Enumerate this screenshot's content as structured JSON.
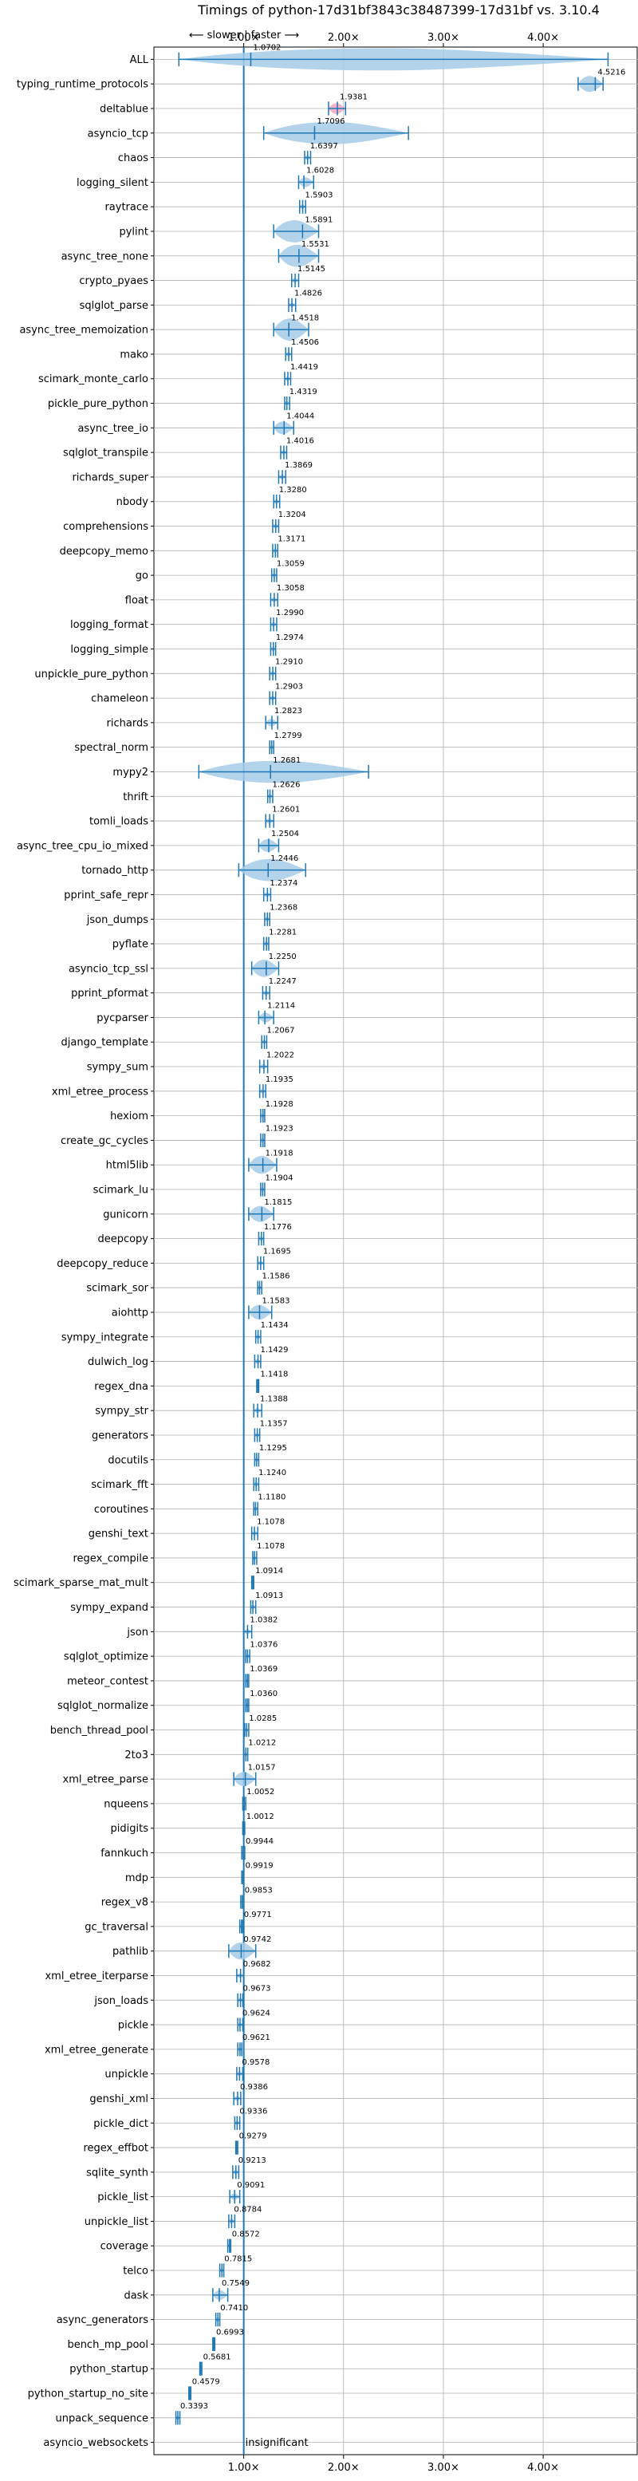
{
  "chart_data": {
    "type": "violin",
    "title": "Timings of python-17d31bf3843c38487399-17d31bf vs. 3.10.4",
    "direction_label": "⟵ slower | faster ⟶",
    "xlim": [
      0.1,
      4.95
    ],
    "xticks": [
      1,
      2,
      3,
      4
    ],
    "xtick_labels": [
      "1.00×",
      "2.00×",
      "3.00×",
      "4.00×"
    ],
    "reference_line": 1.0,
    "grid": true,
    "insignificant_label": "insignificant",
    "benchmarks": [
      {
        "name": "ALL",
        "value": 1.0702,
        "label": "1.0702",
        "min": 0.35,
        "max": 4.65
      },
      {
        "name": "typing_runtime_protocols",
        "value": 4.5216,
        "label": "4.5216",
        "min": 4.35,
        "max": 4.6
      },
      {
        "name": "deltablue",
        "value": 1.9381,
        "label": "1.9381",
        "min": 1.85,
        "max": 2.02
      },
      {
        "name": "asyncio_tcp",
        "value": 1.7096,
        "label": "1.7096",
        "min": 1.2,
        "max": 2.65
      },
      {
        "name": "chaos",
        "value": 1.6397,
        "label": "1.6397",
        "min": 1.61,
        "max": 1.67
      },
      {
        "name": "logging_silent",
        "value": 1.6028,
        "label": "1.6028",
        "min": 1.55,
        "max": 1.7
      },
      {
        "name": "raytrace",
        "value": 1.5903,
        "label": "1.5903",
        "min": 1.56,
        "max": 1.62
      },
      {
        "name": "pylint",
        "value": 1.5891,
        "label": "1.5891",
        "min": 1.3,
        "max": 1.75
      },
      {
        "name": "async_tree_none",
        "value": 1.5531,
        "label": "1.5531",
        "min": 1.35,
        "max": 1.75
      },
      {
        "name": "crypto_pyaes",
        "value": 1.5145,
        "label": "1.5145",
        "min": 1.48,
        "max": 1.55
      },
      {
        "name": "sqlglot_parse",
        "value": 1.4826,
        "label": "1.4826",
        "min": 1.45,
        "max": 1.52
      },
      {
        "name": "async_tree_memoization",
        "value": 1.4518,
        "label": "1.4518",
        "min": 1.3,
        "max": 1.65
      },
      {
        "name": "mako",
        "value": 1.4506,
        "label": "1.4506",
        "min": 1.42,
        "max": 1.48
      },
      {
        "name": "scimark_monte_carlo",
        "value": 1.4419,
        "label": "1.4419",
        "min": 1.41,
        "max": 1.47
      },
      {
        "name": "pickle_pure_python",
        "value": 1.4319,
        "label": "1.4319",
        "min": 1.41,
        "max": 1.46
      },
      {
        "name": "async_tree_io",
        "value": 1.4044,
        "label": "1.4044",
        "min": 1.3,
        "max": 1.5
      },
      {
        "name": "sqlglot_transpile",
        "value": 1.4016,
        "label": "1.4016",
        "min": 1.37,
        "max": 1.43
      },
      {
        "name": "richards_super",
        "value": 1.3869,
        "label": "1.3869",
        "min": 1.35,
        "max": 1.42
      },
      {
        "name": "nbody",
        "value": 1.328,
        "label": "1.3280",
        "min": 1.3,
        "max": 1.36
      },
      {
        "name": "comprehensions",
        "value": 1.3204,
        "label": "1.3204",
        "min": 1.29,
        "max": 1.35
      },
      {
        "name": "deepcopy_memo",
        "value": 1.3171,
        "label": "1.3171",
        "min": 1.29,
        "max": 1.34
      },
      {
        "name": "go",
        "value": 1.3059,
        "label": "1.3059",
        "min": 1.28,
        "max": 1.33
      },
      {
        "name": "float",
        "value": 1.3058,
        "label": "1.3058",
        "min": 1.27,
        "max": 1.34
      },
      {
        "name": "logging_format",
        "value": 1.299,
        "label": "1.2990",
        "min": 1.27,
        "max": 1.33
      },
      {
        "name": "logging_simple",
        "value": 1.2974,
        "label": "1.2974",
        "min": 1.27,
        "max": 1.32
      },
      {
        "name": "unpickle_pure_python",
        "value": 1.291,
        "label": "1.2910",
        "min": 1.26,
        "max": 1.32
      },
      {
        "name": "chameleon",
        "value": 1.2903,
        "label": "1.2903",
        "min": 1.26,
        "max": 1.32
      },
      {
        "name": "richards",
        "value": 1.2823,
        "label": "1.2823",
        "min": 1.22,
        "max": 1.34
      },
      {
        "name": "spectral_norm",
        "value": 1.2799,
        "label": "1.2799",
        "min": 1.26,
        "max": 1.3
      },
      {
        "name": "mypy2",
        "value": 1.2681,
        "label": "1.2681",
        "min": 0.55,
        "max": 2.25
      },
      {
        "name": "thrift",
        "value": 1.2626,
        "label": "1.2626",
        "min": 1.24,
        "max": 1.29
      },
      {
        "name": "tomli_loads",
        "value": 1.2601,
        "label": "1.2601",
        "min": 1.22,
        "max": 1.3
      },
      {
        "name": "async_tree_cpu_io_mixed",
        "value": 1.2504,
        "label": "1.2504",
        "min": 1.15,
        "max": 1.35
      },
      {
        "name": "tornado_http",
        "value": 1.2446,
        "label": "1.2446",
        "min": 0.95,
        "max": 1.62
      },
      {
        "name": "pprint_safe_repr",
        "value": 1.2374,
        "label": "1.2374",
        "min": 1.2,
        "max": 1.27
      },
      {
        "name": "json_dumps",
        "value": 1.2368,
        "label": "1.2368",
        "min": 1.21,
        "max": 1.26
      },
      {
        "name": "pyflate",
        "value": 1.2281,
        "label": "1.2281",
        "min": 1.2,
        "max": 1.25
      },
      {
        "name": "asyncio_tcp_ssl",
        "value": 1.225,
        "label": "1.2250",
        "min": 1.08,
        "max": 1.35
      },
      {
        "name": "pprint_pformat",
        "value": 1.2247,
        "label": "1.2247",
        "min": 1.19,
        "max": 1.26
      },
      {
        "name": "pycparser",
        "value": 1.2114,
        "label": "1.2114",
        "min": 1.15,
        "max": 1.3
      },
      {
        "name": "django_template",
        "value": 1.2067,
        "label": "1.2067",
        "min": 1.18,
        "max": 1.23
      },
      {
        "name": "sympy_sum",
        "value": 1.2022,
        "label": "1.2022",
        "min": 1.16,
        "max": 1.24
      },
      {
        "name": "xml_etree_process",
        "value": 1.1935,
        "label": "1.1935",
        "min": 1.16,
        "max": 1.22
      },
      {
        "name": "hexiom",
        "value": 1.1928,
        "label": "1.1928",
        "min": 1.17,
        "max": 1.21
      },
      {
        "name": "create_gc_cycles",
        "value": 1.1923,
        "label": "1.1923",
        "min": 1.17,
        "max": 1.21
      },
      {
        "name": "html5lib",
        "value": 1.1918,
        "label": "1.1918",
        "min": 1.05,
        "max": 1.33
      },
      {
        "name": "scimark_lu",
        "value": 1.1904,
        "label": "1.1904",
        "min": 1.17,
        "max": 1.21
      },
      {
        "name": "gunicorn",
        "value": 1.1815,
        "label": "1.1815",
        "min": 1.05,
        "max": 1.3
      },
      {
        "name": "deepcopy",
        "value": 1.1776,
        "label": "1.1776",
        "min": 1.15,
        "max": 1.2
      },
      {
        "name": "deepcopy_reduce",
        "value": 1.1695,
        "label": "1.1695",
        "min": 1.14,
        "max": 1.2
      },
      {
        "name": "scimark_sor",
        "value": 1.1586,
        "label": "1.1586",
        "min": 1.14,
        "max": 1.18
      },
      {
        "name": "aiohttp",
        "value": 1.1583,
        "label": "1.1583",
        "min": 1.05,
        "max": 1.28
      },
      {
        "name": "sympy_integrate",
        "value": 1.1434,
        "label": "1.1434",
        "min": 1.12,
        "max": 1.17
      },
      {
        "name": "dulwich_log",
        "value": 1.1429,
        "label": "1.1429",
        "min": 1.11,
        "max": 1.17
      },
      {
        "name": "regex_dna",
        "value": 1.1418,
        "label": "1.1418",
        "min": 1.13,
        "max": 1.15
      },
      {
        "name": "sympy_str",
        "value": 1.1388,
        "label": "1.1388",
        "min": 1.1,
        "max": 1.18
      },
      {
        "name": "generators",
        "value": 1.1357,
        "label": "1.1357",
        "min": 1.11,
        "max": 1.16
      },
      {
        "name": "docutils",
        "value": 1.1295,
        "label": "1.1295",
        "min": 1.11,
        "max": 1.15
      },
      {
        "name": "scimark_fft",
        "value": 1.124,
        "label": "1.1240",
        "min": 1.1,
        "max": 1.15
      },
      {
        "name": "coroutines",
        "value": 1.118,
        "label": "1.1180",
        "min": 1.1,
        "max": 1.14
      },
      {
        "name": "genshi_text",
        "value": 1.1078,
        "label": "1.1078",
        "min": 1.08,
        "max": 1.14
      },
      {
        "name": "regex_compile",
        "value": 1.1078,
        "label": "1.1078",
        "min": 1.09,
        "max": 1.13
      },
      {
        "name": "scimark_sparse_mat_mult",
        "value": 1.0914,
        "label": "1.0914",
        "min": 1.08,
        "max": 1.1
      },
      {
        "name": "sympy_expand",
        "value": 1.0913,
        "label": "1.0913",
        "min": 1.07,
        "max": 1.12
      },
      {
        "name": "json",
        "value": 1.0382,
        "label": "1.0382",
        "min": 1.0,
        "max": 1.08
      },
      {
        "name": "sqlglot_optimize",
        "value": 1.0376,
        "label": "1.0376",
        "min": 1.02,
        "max": 1.06
      },
      {
        "name": "meteor_contest",
        "value": 1.0369,
        "label": "1.0369",
        "min": 1.02,
        "max": 1.05
      },
      {
        "name": "sqlglot_normalize",
        "value": 1.036,
        "label": "1.0360",
        "min": 1.02,
        "max": 1.05
      },
      {
        "name": "bench_thread_pool",
        "value": 1.0285,
        "label": "1.0285",
        "min": 1.01,
        "max": 1.05
      },
      {
        "name": "2to3",
        "value": 1.0212,
        "label": "1.0212",
        "min": 1.0,
        "max": 1.04
      },
      {
        "name": "xml_etree_parse",
        "value": 1.0157,
        "label": "1.0157",
        "min": 0.9,
        "max": 1.12
      },
      {
        "name": "nqueens",
        "value": 1.0052,
        "label": "1.0052",
        "min": 0.99,
        "max": 1.02
      },
      {
        "name": "pidigits",
        "value": 1.0012,
        "label": "1.0012",
        "min": 0.99,
        "max": 1.01
      },
      {
        "name": "fannkuch",
        "value": 0.9944,
        "label": "0.9944",
        "min": 0.98,
        "max": 1.01
      },
      {
        "name": "mdp",
        "value": 0.9919,
        "label": "0.9919",
        "min": 0.98,
        "max": 1.0
      },
      {
        "name": "regex_v8",
        "value": 0.9853,
        "label": "0.9853",
        "min": 0.97,
        "max": 1.0
      },
      {
        "name": "gc_traversal",
        "value": 0.9771,
        "label": "0.9771",
        "min": 0.96,
        "max": 0.99
      },
      {
        "name": "pathlib",
        "value": 0.9742,
        "label": "0.9742",
        "min": 0.85,
        "max": 1.12
      },
      {
        "name": "xml_etree_iterparse",
        "value": 0.9682,
        "label": "0.9682",
        "min": 0.93,
        "max": 1.0
      },
      {
        "name": "json_loads",
        "value": 0.9673,
        "label": "0.9673",
        "min": 0.94,
        "max": 0.99
      },
      {
        "name": "pickle",
        "value": 0.9624,
        "label": "0.9624",
        "min": 0.94,
        "max": 0.99
      },
      {
        "name": "xml_etree_generate",
        "value": 0.9621,
        "label": "0.9621",
        "min": 0.94,
        "max": 0.98
      },
      {
        "name": "unpickle",
        "value": 0.9578,
        "label": "0.9578",
        "min": 0.93,
        "max": 0.99
      },
      {
        "name": "genshi_xml",
        "value": 0.9386,
        "label": "0.9386",
        "min": 0.9,
        "max": 0.97
      },
      {
        "name": "pickle_dict",
        "value": 0.9336,
        "label": "0.9336",
        "min": 0.91,
        "max": 0.96
      },
      {
        "name": "regex_effbot",
        "value": 0.9279,
        "label": "0.9279",
        "min": 0.92,
        "max": 0.94
      },
      {
        "name": "sqlite_synth",
        "value": 0.9213,
        "label": "0.9213",
        "min": 0.89,
        "max": 0.95
      },
      {
        "name": "pickle_list",
        "value": 0.9091,
        "label": "0.9091",
        "min": 0.86,
        "max": 0.96
      },
      {
        "name": "unpickle_list",
        "value": 0.8784,
        "label": "0.8784",
        "min": 0.85,
        "max": 0.91
      },
      {
        "name": "coverage",
        "value": 0.8572,
        "label": "0.8572",
        "min": 0.84,
        "max": 0.87
      },
      {
        "name": "telco",
        "value": 0.7815,
        "label": "0.7815",
        "min": 0.76,
        "max": 0.8
      },
      {
        "name": "dask",
        "value": 0.7549,
        "label": "0.7549",
        "min": 0.69,
        "max": 0.84
      },
      {
        "name": "async_generators",
        "value": 0.741,
        "label": "0.7410",
        "min": 0.72,
        "max": 0.76
      },
      {
        "name": "bench_mp_pool",
        "value": 0.6993,
        "label": "0.6993",
        "min": 0.69,
        "max": 0.71
      },
      {
        "name": "python_startup",
        "value": 0.5681,
        "label": "0.5681",
        "min": 0.56,
        "max": 0.58
      },
      {
        "name": "python_startup_no_site",
        "value": 0.4579,
        "label": "0.4579",
        "min": 0.45,
        "max": 0.47
      },
      {
        "name": "unpack_sequence",
        "value": 0.3393,
        "label": "0.3393",
        "min": 0.32,
        "max": 0.36
      },
      {
        "name": "asyncio_websockets",
        "value": null,
        "label": "insignificant",
        "min": null,
        "max": null
      }
    ]
  },
  "colors": {
    "violin_fill": "#a6cbe8",
    "violin_edge": "#1f77b4",
    "whisker": "#1f77b4",
    "highlight_fill": "#f4a6c0",
    "reference_line": "#1f77b4",
    "grid": "#b0b0b0"
  }
}
